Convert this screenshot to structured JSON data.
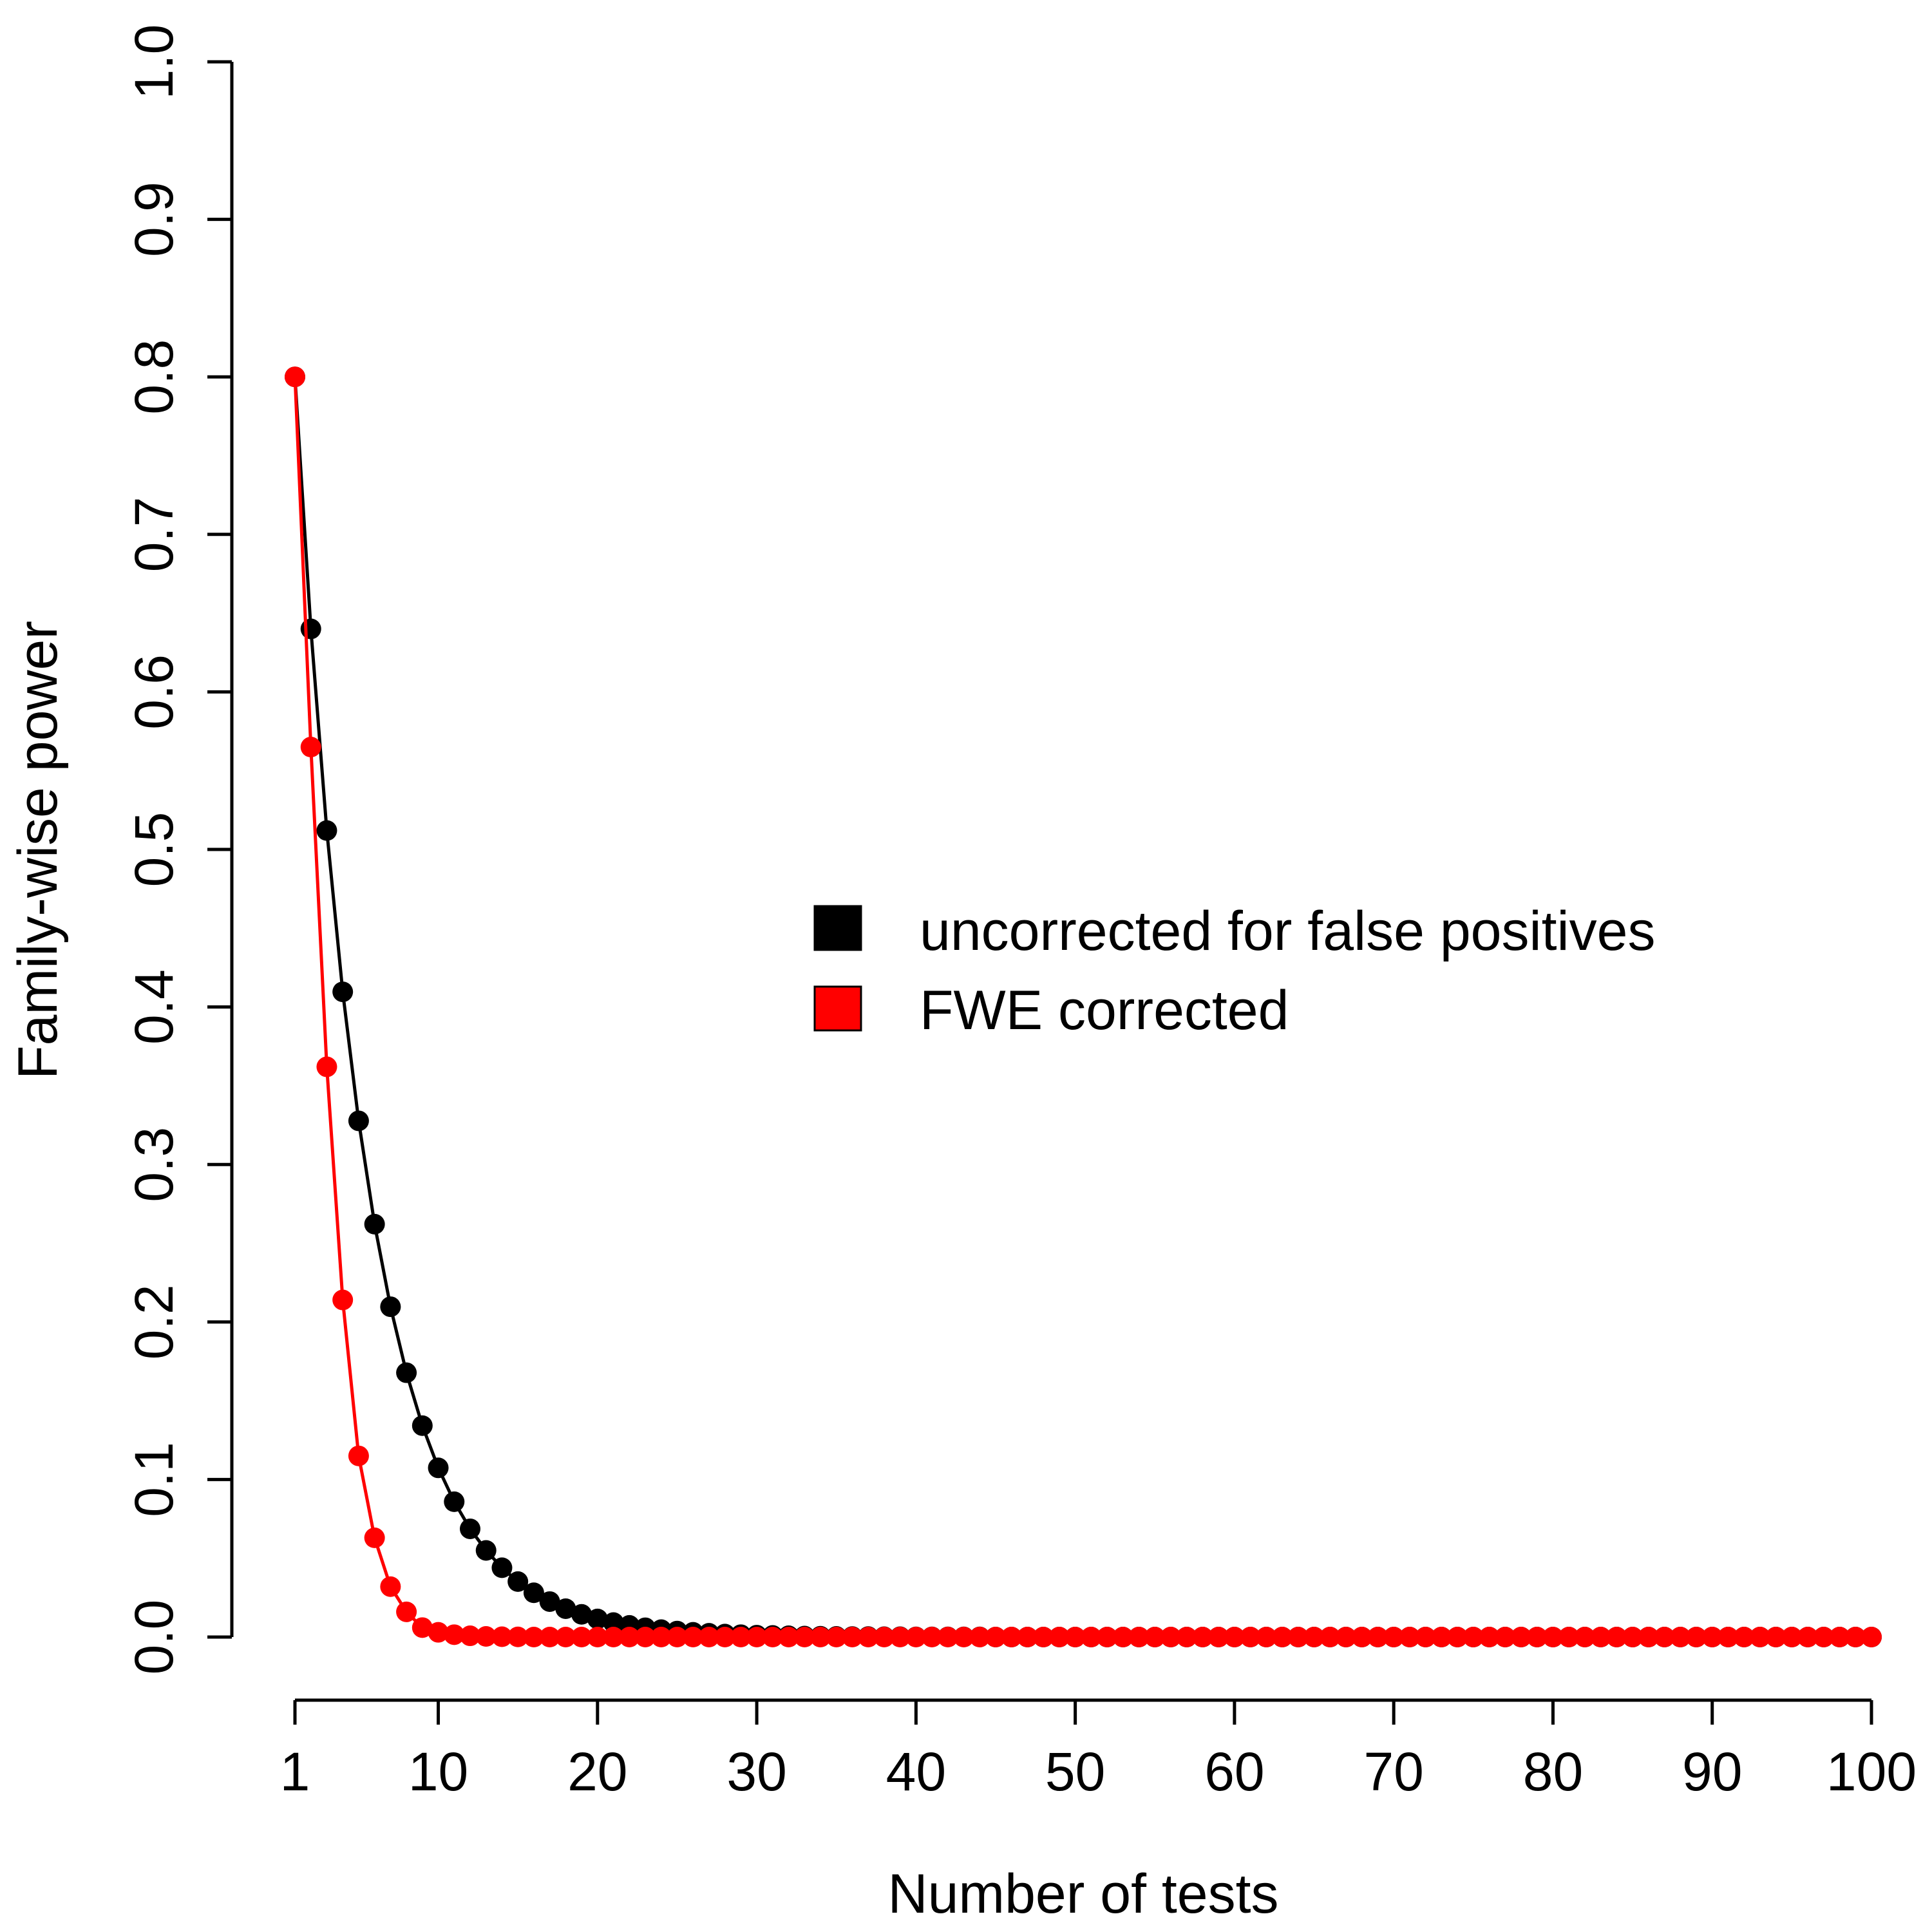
{
  "chart_data": {
    "type": "line",
    "title": "",
    "xlabel": "Number of tests",
    "ylabel": "Family-wise power",
    "xlim": [
      1,
      100
    ],
    "ylim": [
      0,
      1
    ],
    "x_ticks": [
      1,
      10,
      20,
      30,
      40,
      50,
      60,
      70,
      80,
      90,
      100
    ],
    "y_ticks": [
      0.0,
      0.1,
      0.2,
      0.3,
      0.4,
      0.5,
      0.6,
      0.7,
      0.8,
      0.9,
      1.0
    ],
    "y_tick_labels": [
      "0.0",
      "0.1",
      "0.2",
      "0.3",
      "0.4",
      "0.5",
      "0.6",
      "0.7",
      "0.8",
      "0.9",
      "1.0"
    ],
    "x_tick_labels": [
      "1",
      "10",
      "20",
      "30",
      "40",
      "50",
      "60",
      "70",
      "80",
      "90",
      "100"
    ],
    "grid": false,
    "legend_position": "right-center",
    "x": [
      1,
      2,
      3,
      4,
      5,
      6,
      7,
      8,
      9,
      10,
      11,
      12,
      13,
      14,
      15,
      16,
      17,
      18,
      19,
      20,
      21,
      22,
      23,
      24,
      25,
      26,
      27,
      28,
      29,
      30,
      31,
      32,
      33,
      34,
      35,
      36,
      37,
      38,
      39,
      40,
      41,
      42,
      43,
      44,
      45,
      46,
      47,
      48,
      49,
      50,
      51,
      52,
      53,
      54,
      55,
      56,
      57,
      58,
      59,
      60,
      61,
      62,
      63,
      64,
      65,
      66,
      67,
      68,
      69,
      70,
      71,
      72,
      73,
      74,
      75,
      76,
      77,
      78,
      79,
      80,
      81,
      82,
      83,
      84,
      85,
      86,
      87,
      88,
      89,
      90,
      91,
      92,
      93,
      94,
      95,
      96,
      97,
      98,
      99,
      100
    ],
    "series": [
      {
        "name": "uncorrected for false positives",
        "color": "#000000",
        "values": [
          0.8,
          0.64,
          0.512,
          0.4096,
          0.3277,
          0.2621,
          0.2097,
          0.1678,
          0.1342,
          0.1074,
          0.0859,
          0.0687,
          0.055,
          0.044,
          0.0352,
          0.0281,
          0.0225,
          0.018,
          0.0144,
          0.0115,
          0.0092,
          0.0074,
          0.0059,
          0.0047,
          0.0038,
          0.003,
          0.0024,
          0.0019,
          0.0015,
          0.0012,
          0.001,
          0.0008,
          0.0006,
          0.0005,
          0.0004,
          0.0003,
          0.0003,
          0.0002,
          0.0002,
          0.0001,
          0.0001,
          0.0001,
          0.0001,
          0.0001,
          0.0,
          0.0,
          0.0,
          0.0,
          0.0,
          0.0,
          0.0,
          0.0,
          0.0,
          0.0,
          0.0,
          0.0,
          0.0,
          0.0,
          0.0,
          0.0,
          0.0,
          0.0,
          0.0,
          0.0,
          0.0,
          0.0,
          0.0,
          0.0,
          0.0,
          0.0,
          0.0,
          0.0,
          0.0,
          0.0,
          0.0,
          0.0,
          0.0,
          0.0,
          0.0,
          0.0,
          0.0,
          0.0,
          0.0,
          0.0,
          0.0,
          0.0,
          0.0,
          0.0,
          0.0,
          0.0,
          0.0,
          0.0,
          0.0,
          0.0,
          0.0,
          0.0,
          0.0,
          0.0,
          0.0,
          0.0
        ]
      },
      {
        "name": "FWE corrected",
        "color": "#ff0000",
        "values": [
          0.8,
          0.565,
          0.362,
          0.214,
          0.115,
          0.063,
          0.032,
          0.016,
          0.006,
          0.003,
          0.0015,
          0.0008,
          0.0004,
          0.0002,
          0.0001,
          0.0,
          0.0,
          0.0,
          0.0,
          0.0,
          0.0,
          0.0,
          0.0,
          0.0,
          0.0,
          0.0,
          0.0,
          0.0,
          0.0,
          0.0,
          0.0,
          0.0,
          0.0,
          0.0,
          0.0,
          0.0,
          0.0,
          0.0,
          0.0,
          0.0,
          0.0,
          0.0,
          0.0,
          0.0,
          0.0,
          0.0,
          0.0,
          0.0,
          0.0,
          0.0,
          0.0,
          0.0,
          0.0,
          0.0,
          0.0,
          0.0,
          0.0,
          0.0,
          0.0,
          0.0,
          0.0,
          0.0,
          0.0,
          0.0,
          0.0,
          0.0,
          0.0,
          0.0,
          0.0,
          0.0,
          0.0,
          0.0,
          0.0,
          0.0,
          0.0,
          0.0,
          0.0,
          0.0,
          0.0,
          0.0,
          0.0,
          0.0,
          0.0,
          0.0,
          0.0,
          0.0,
          0.0,
          0.0,
          0.0,
          0.0,
          0.0,
          0.0,
          0.0,
          0.0,
          0.0,
          0.0,
          0.0,
          0.0,
          0.0,
          0.0
        ]
      }
    ]
  }
}
